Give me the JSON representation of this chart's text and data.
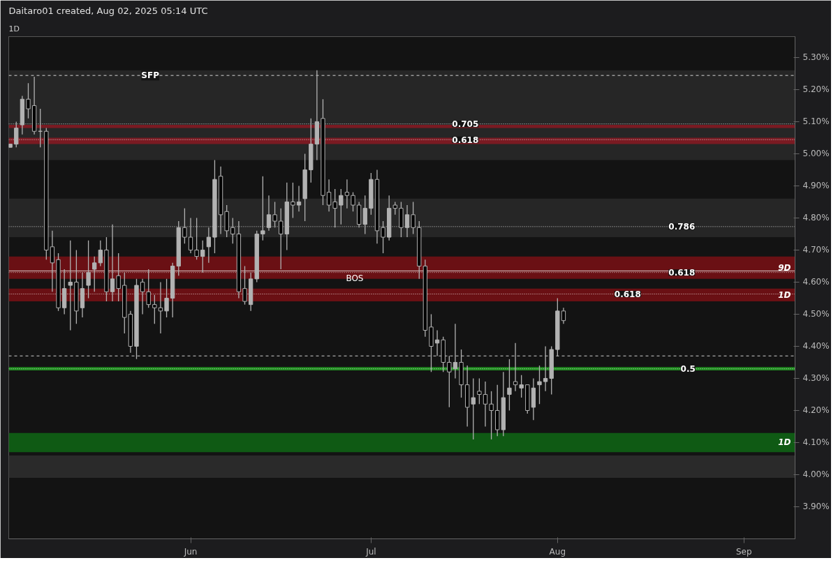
{
  "chart_data": {
    "type": "candlestick",
    "title": "Daitaro01 created, Aug 02, 2025 05:14 UTC",
    "subtitle": "1D",
    "color": "#b2b2b2",
    "x": [
      "2025-05-02",
      "2025-05-03",
      "2025-05-04",
      "2025-05-05",
      "2025-05-06",
      "2025-05-07",
      "2025-05-08",
      "2025-05-09",
      "2025-05-10",
      "2025-05-11",
      "2025-05-12",
      "2025-05-13",
      "2025-05-14",
      "2025-05-15",
      "2025-05-16",
      "2025-05-17",
      "2025-05-18",
      "2025-05-19",
      "2025-05-20",
      "2025-05-21",
      "2025-05-22",
      "2025-05-23",
      "2025-05-24",
      "2025-05-25",
      "2025-05-26",
      "2025-05-27",
      "2025-05-28",
      "2025-05-29",
      "2025-05-30",
      "2025-05-31",
      "2025-06-01",
      "2025-06-02",
      "2025-06-03",
      "2025-06-04",
      "2025-06-05",
      "2025-06-06",
      "2025-06-07",
      "2025-06-08",
      "2025-06-09",
      "2025-06-10",
      "2025-06-11",
      "2025-06-12",
      "2025-06-13",
      "2025-06-14",
      "2025-06-15",
      "2025-06-16",
      "2025-06-17",
      "2025-06-18",
      "2025-06-19",
      "2025-06-20",
      "2025-06-21",
      "2025-06-22",
      "2025-06-23",
      "2025-06-24",
      "2025-06-25",
      "2025-06-26",
      "2025-06-27",
      "2025-06-28",
      "2025-06-29",
      "2025-06-30",
      "2025-07-01",
      "2025-07-02",
      "2025-07-03",
      "2025-07-04",
      "2025-07-05",
      "2025-07-06",
      "2025-07-07",
      "2025-07-08",
      "2025-07-09",
      "2025-07-10",
      "2025-07-11",
      "2025-07-12",
      "2025-07-13",
      "2025-07-14",
      "2025-07-15",
      "2025-07-16",
      "2025-07-17",
      "2025-07-18",
      "2025-07-19",
      "2025-07-20",
      "2025-07-21",
      "2025-07-22",
      "2025-07-23",
      "2025-07-24",
      "2025-07-25",
      "2025-07-26",
      "2025-07-27",
      "2025-07-28",
      "2025-07-29",
      "2025-07-30",
      "2025-07-31",
      "2025-08-01",
      "2025-08-02"
    ],
    "ohlc": [
      [
        5.02,
        5.03,
        5.02,
        5.03
      ],
      [
        5.03,
        5.1,
        5.02,
        5.08
      ],
      [
        5.09,
        5.18,
        5.06,
        5.17
      ],
      [
        5.17,
        5.22,
        5.11,
        5.14
      ],
      [
        5.15,
        5.24,
        5.06,
        5.07
      ],
      [
        5.07,
        5.14,
        5.02,
        5.07
      ],
      [
        5.07,
        5.08,
        4.67,
        4.7
      ],
      [
        4.71,
        4.76,
        4.57,
        4.66
      ],
      [
        4.67,
        4.69,
        4.51,
        4.52
      ],
      [
        4.52,
        4.64,
        4.5,
        4.58
      ],
      [
        4.59,
        4.73,
        4.45,
        4.6
      ],
      [
        4.6,
        4.7,
        4.47,
        4.51
      ],
      [
        4.52,
        4.63,
        4.49,
        4.58
      ],
      [
        4.59,
        4.73,
        4.55,
        4.63
      ],
      [
        4.64,
        4.68,
        4.57,
        4.66
      ],
      [
        4.66,
        4.73,
        4.65,
        4.7
      ],
      [
        4.7,
        4.74,
        4.54,
        4.57
      ],
      [
        4.57,
        4.78,
        4.54,
        4.61
      ],
      [
        4.62,
        4.69,
        4.54,
        4.58
      ],
      [
        4.59,
        4.63,
        4.44,
        4.49
      ],
      [
        4.5,
        4.51,
        4.38,
        4.4
      ],
      [
        4.4,
        4.61,
        4.36,
        4.59
      ],
      [
        4.6,
        4.61,
        4.5,
        4.57
      ],
      [
        4.57,
        4.64,
        4.52,
        4.53
      ],
      [
        4.53,
        4.56,
        4.47,
        4.52
      ],
      [
        4.52,
        4.6,
        4.44,
        4.51
      ],
      [
        4.51,
        4.61,
        4.49,
        4.55
      ],
      [
        4.55,
        4.66,
        4.49,
        4.65
      ],
      [
        4.65,
        4.79,
        4.62,
        4.77
      ],
      [
        4.77,
        4.83,
        4.72,
        4.74
      ],
      [
        4.74,
        4.8,
        4.69,
        4.7
      ],
      [
        4.7,
        4.8,
        4.67,
        4.68
      ],
      [
        4.68,
        4.73,
        4.63,
        4.7
      ],
      [
        4.71,
        4.77,
        4.66,
        4.74
      ],
      [
        4.74,
        4.98,
        4.69,
        4.92
      ],
      [
        4.93,
        4.96,
        4.75,
        4.81
      ],
      [
        4.82,
        4.84,
        4.74,
        4.76
      ],
      [
        4.77,
        4.8,
        4.72,
        4.75
      ],
      [
        4.75,
        4.79,
        4.55,
        4.57
      ],
      [
        4.58,
        4.65,
        4.53,
        4.54
      ],
      [
        4.53,
        4.63,
        4.51,
        4.61
      ],
      [
        4.61,
        4.76,
        4.6,
        4.75
      ],
      [
        4.75,
        4.93,
        4.73,
        4.76
      ],
      [
        4.77,
        4.87,
        4.76,
        4.81
      ],
      [
        4.81,
        4.85,
        4.77,
        4.79
      ],
      [
        4.79,
        4.83,
        4.64,
        4.75
      ],
      [
        4.75,
        4.91,
        4.7,
        4.85
      ],
      [
        4.85,
        4.91,
        4.8,
        4.84
      ],
      [
        4.84,
        4.9,
        4.82,
        4.85
      ],
      [
        4.86,
        5.0,
        4.79,
        4.95
      ],
      [
        4.95,
        5.11,
        4.91,
        5.03
      ],
      [
        5.03,
        5.26,
        4.98,
        5.1
      ],
      [
        5.11,
        5.17,
        4.84,
        4.87
      ],
      [
        4.88,
        4.92,
        4.82,
        4.84
      ],
      [
        4.85,
        4.89,
        4.77,
        4.83
      ],
      [
        4.84,
        4.89,
        4.78,
        4.87
      ],
      [
        4.88,
        4.92,
        4.83,
        4.87
      ],
      [
        4.87,
        4.88,
        4.82,
        4.84
      ],
      [
        4.84,
        4.85,
        4.77,
        4.78
      ],
      [
        4.78,
        4.87,
        4.75,
        4.83
      ],
      [
        4.83,
        4.94,
        4.81,
        4.92
      ],
      [
        4.92,
        4.95,
        4.72,
        4.76
      ],
      [
        4.77,
        4.79,
        4.69,
        4.74
      ],
      [
        4.74,
        4.87,
        4.73,
        4.83
      ],
      [
        4.84,
        4.85,
        4.81,
        4.83
      ],
      [
        4.83,
        4.85,
        4.74,
        4.77
      ],
      [
        4.77,
        4.84,
        4.74,
        4.81
      ],
      [
        4.81,
        4.85,
        4.75,
        4.77
      ],
      [
        4.77,
        4.79,
        4.61,
        4.65
      ],
      [
        4.65,
        4.67,
        4.43,
        4.45
      ],
      [
        4.46,
        4.5,
        4.32,
        4.4
      ],
      [
        4.41,
        4.45,
        4.37,
        4.42
      ],
      [
        4.42,
        4.43,
        4.32,
        4.35
      ],
      [
        4.35,
        4.37,
        4.21,
        4.32
      ],
      [
        4.33,
        4.47,
        4.3,
        4.35
      ],
      [
        4.35,
        4.39,
        4.24,
        4.28
      ],
      [
        4.28,
        4.34,
        4.15,
        4.21
      ],
      [
        4.22,
        4.3,
        4.11,
        4.24
      ],
      [
        4.26,
        4.3,
        4.22,
        4.25
      ],
      [
        4.25,
        4.29,
        4.15,
        4.22
      ],
      [
        4.22,
        4.26,
        4.11,
        4.2
      ],
      [
        4.2,
        4.28,
        4.12,
        4.14
      ],
      [
        4.14,
        4.32,
        4.12,
        4.24
      ],
      [
        4.25,
        4.36,
        4.2,
        4.27
      ],
      [
        4.29,
        4.41,
        4.26,
        4.28
      ],
      [
        4.27,
        4.31,
        4.24,
        4.28
      ],
      [
        4.28,
        4.28,
        4.19,
        4.2
      ],
      [
        4.21,
        4.3,
        4.17,
        4.27
      ],
      [
        4.28,
        4.34,
        4.22,
        4.29
      ],
      [
        4.29,
        4.4,
        4.26,
        4.3
      ],
      [
        4.3,
        4.4,
        4.25,
        4.39
      ],
      [
        4.39,
        4.55,
        4.37,
        4.51
      ],
      [
        4.51,
        4.52,
        4.47,
        4.48
      ]
    ],
    "xlim": [
      "2025-05-01T18:00",
      "2025-09-09T12:00"
    ],
    "xticks": [
      {
        "value": "2025-06-01",
        "label": "Jun"
      },
      {
        "value": "2025-07-01",
        "label": "Jul"
      },
      {
        "value": "2025-08-01",
        "label": "Aug"
      },
      {
        "value": "2025-09-01",
        "label": "Sep"
      }
    ],
    "ylim": [
      3.8,
      5.365
    ],
    "yticks": [
      {
        "value": 3.9,
        "label": "3.90%"
      },
      {
        "value": 4.0,
        "label": "4.00%"
      },
      {
        "value": 4.1,
        "label": "4.10%"
      },
      {
        "value": 4.2,
        "label": "4.20%"
      },
      {
        "value": 4.3,
        "label": "4.30%"
      },
      {
        "value": 4.4,
        "label": "4.40%"
      },
      {
        "value": 4.5,
        "label": "4.50%"
      },
      {
        "value": 4.6,
        "label": "4.60%"
      },
      {
        "value": 4.7,
        "label": "4.70%"
      },
      {
        "value": 4.8,
        "label": "4.80%"
      },
      {
        "value": 4.9,
        "label": "4.90%"
      },
      {
        "value": 5.0,
        "label": "5.00%"
      },
      {
        "value": 5.1,
        "label": "5.10%"
      },
      {
        "value": 5.2,
        "label": "5.20%"
      },
      {
        "value": 5.3,
        "label": "5.30%"
      }
    ],
    "bands": [
      {
        "axis": "y",
        "from": 4.98,
        "to": 5.26,
        "color": "#262626"
      },
      {
        "axis": "y",
        "from": 5.08,
        "to": 5.09,
        "color": "#7a1a22"
      },
      {
        "axis": "y",
        "from": 5.03,
        "to": 5.05,
        "color": "#7a1a22"
      },
      {
        "axis": "y",
        "from": 4.74,
        "to": 4.86,
        "color": "#262626"
      },
      {
        "axis": "y",
        "from": 4.61,
        "to": 4.68,
        "color": "#6a1014",
        "label": "9D"
      },
      {
        "axis": "y",
        "from": 4.54,
        "to": 4.58,
        "color": "#6a1014",
        "label": "1D"
      },
      {
        "axis": "y",
        "from": 4.325,
        "to": 4.335,
        "color": "#1e8a1e"
      },
      {
        "axis": "y",
        "from": 4.07,
        "to": 4.13,
        "color": "#0f5a14",
        "label": "1D"
      },
      {
        "axis": "y",
        "from": 3.99,
        "to": 4.06,
        "color": "#2a2a2a"
      }
    ],
    "ref_lines": [
      {
        "axis": "y",
        "value": 5.093,
        "line_style": "dotted",
        "color": "#ffffff"
      },
      {
        "axis": "y",
        "value": 5.044,
        "line_style": "dotted",
        "color": "#ffffff"
      },
      {
        "axis": "y",
        "value": 4.773,
        "line_style": "dotted",
        "color": "#ffffff"
      },
      {
        "axis": "y",
        "value": 4.63,
        "line_style": "dotted",
        "color": "#ffffff"
      },
      {
        "axis": "y",
        "value": 4.563,
        "line_style": "dotted",
        "color": "#ffffff"
      },
      {
        "axis": "y",
        "value": 4.33,
        "line_style": "dotted",
        "color": "#ffffff"
      },
      {
        "axis": "y",
        "value": 5.244,
        "label": "SFP",
        "line_style": "dashed",
        "color": "#ffffff"
      },
      {
        "axis": "y",
        "value": 4.37,
        "line_style": "dashed",
        "color": "#ffffff"
      },
      {
        "axis": "y",
        "value": 4.635,
        "label": "BOS",
        "line_style": "solid",
        "color": "#ffffff"
      }
    ],
    "annotations": [
      {
        "text": "0.705",
        "x": "2025-07-14",
        "y": 5.093
      },
      {
        "text": "0.618",
        "x": "2025-07-14",
        "y": 5.044
      },
      {
        "text": "0.786",
        "x": "2025-08-19",
        "y": 4.773
      },
      {
        "text": "0.618",
        "x": "2025-08-19",
        "y": 4.63
      },
      {
        "text": "0.618",
        "x": "2025-08-10",
        "y": 4.563
      },
      {
        "text": "0.5",
        "x": "2025-08-21",
        "y": 4.33
      }
    ],
    "grid": false
  }
}
